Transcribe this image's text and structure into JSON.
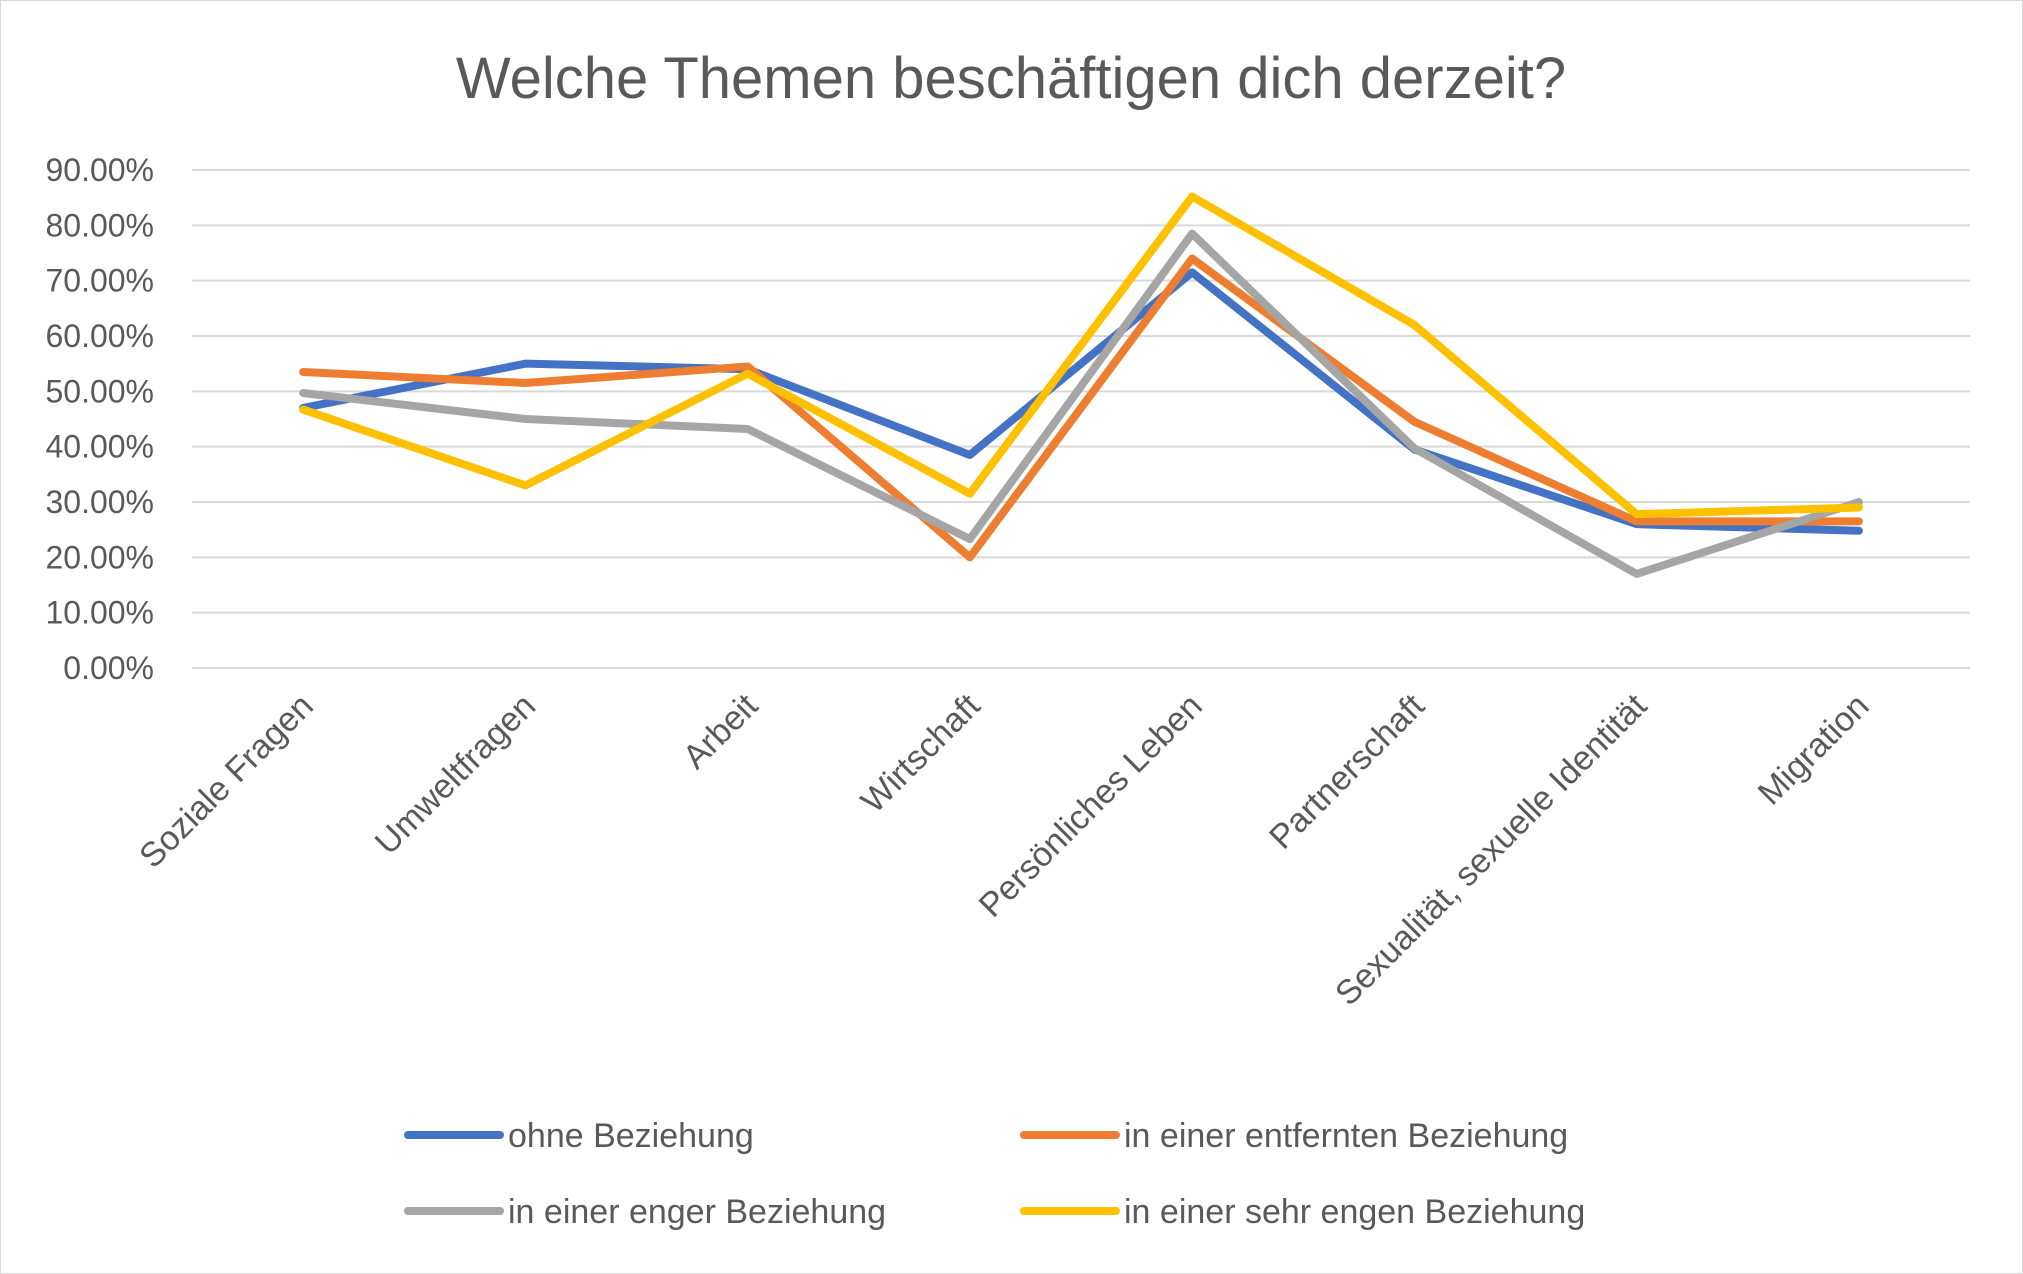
{
  "chart_data": {
    "type": "line",
    "title": "Welche Themen beschäftigen dich derzeit?",
    "xlabel": "",
    "ylabel": "",
    "ylim": [
      0,
      0.9
    ],
    "y_ticks": [
      "0.00%",
      "10.00%",
      "20.00%",
      "30.00%",
      "40.00%",
      "50.00%",
      "60.00%",
      "70.00%",
      "80.00%",
      "90.00%"
    ],
    "grid": true,
    "legend_position": "bottom",
    "categories": [
      "Soziale Fragen",
      "Umweltfragen",
      "Arbeit",
      "Wirtschaft",
      "Persönliches Leben",
      "Partnerschaft",
      "Sexualität, sexuelle Identität",
      "Migration"
    ],
    "series": [
      {
        "name": "ohne Beziehung",
        "color": "#4472C4",
        "values": [
          0.47,
          0.55,
          0.54,
          0.385,
          0.715,
          0.395,
          0.26,
          0.248
        ]
      },
      {
        "name": "in einer entfernten Beziehung",
        "color": "#ED7D31",
        "values": [
          0.535,
          0.515,
          0.545,
          0.2,
          0.74,
          0.445,
          0.265,
          0.265
        ]
      },
      {
        "name": "in einer enger Beziehung",
        "color": "#A5A5A5",
        "values": [
          0.497,
          0.45,
          0.432,
          0.233,
          0.785,
          0.397,
          0.17,
          0.3
        ]
      },
      {
        "name": "in einer sehr engen Beziehung",
        "color": "#FFC000",
        "values": [
          0.467,
          0.33,
          0.532,
          0.315,
          0.852,
          0.62,
          0.278,
          0.29
        ]
      }
    ]
  }
}
